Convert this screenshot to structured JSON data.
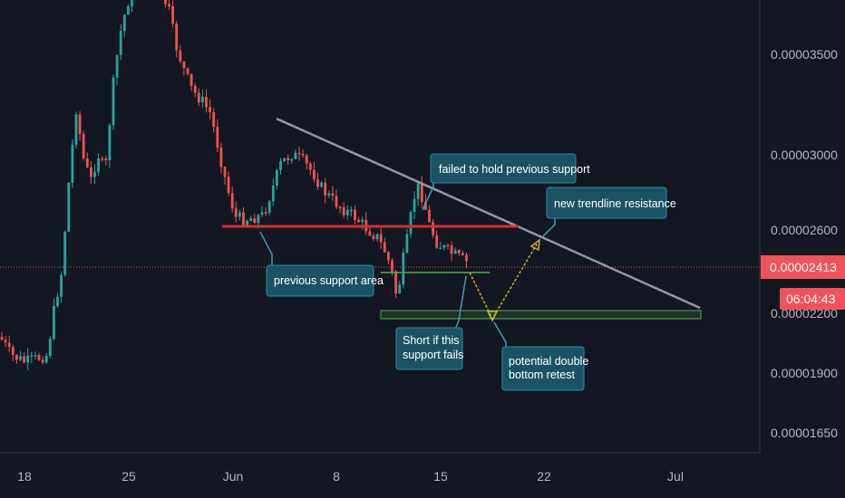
{
  "chart_data": {
    "type": "candlestick",
    "y_ticks": [
      "0.00003500",
      "0.00003000",
      "0.00002600",
      "0.00002200",
      "0.00001900",
      "0.00001650"
    ],
    "x_ticks": [
      "18",
      "25",
      "Jun",
      "8",
      "15",
      "22",
      "Jul"
    ],
    "last_price": "0.00002413",
    "countdown": "06:04:43",
    "annotations": [
      "failed to hold previous support",
      "new trendline resistance",
      "previous support area",
      "Short if this",
      "support fails",
      "potential double",
      "bottom retest"
    ],
    "colors": {
      "background": "#131722",
      "up": "#26a69a",
      "down": "#ef5350",
      "trendline": "#9598a1",
      "resistance": "#d32f2f",
      "support": "#4caf50",
      "projection": "#c9b31a",
      "callout": "#1b5364",
      "price_tag": "#f0525a"
    },
    "grid": false
  }
}
